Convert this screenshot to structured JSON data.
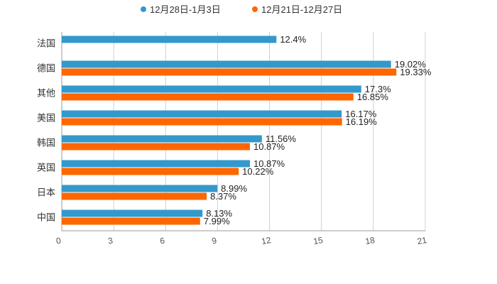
{
  "chart_data": {
    "type": "bar",
    "orientation": "horizontal",
    "categories": [
      "法国",
      "德国",
      "其他",
      "美国",
      "韩国",
      "英国",
      "日本",
      "中国"
    ],
    "series": [
      {
        "name": "12月28日-1月3日",
        "color": "#3399cc",
        "values": [
          12.4,
          19.02,
          17.3,
          16.17,
          11.56,
          10.87,
          8.99,
          8.13
        ],
        "labels": [
          "12.4%",
          "19.02%",
          "17.3%",
          "16.17%",
          "11.56%",
          "10.87%",
          "8.99%",
          "8.13%"
        ]
      },
      {
        "name": "12月21日-12月27日",
        "color": "#ff6600",
        "values": [
          null,
          19.33,
          16.85,
          16.19,
          10.87,
          10.22,
          8.37,
          7.99
        ],
        "labels": [
          null,
          "19.33%",
          "16.85%",
          "16.19%",
          "10.87%",
          "10.22%",
          "8.37%",
          "7.99%"
        ]
      }
    ],
    "x_ticks": [
      0,
      3,
      6,
      9,
      12,
      15,
      18,
      21
    ],
    "xlim": [
      0,
      21
    ],
    "grid": true,
    "legend_position": "top-center",
    "title": "",
    "xlabel": "",
    "ylabel": ""
  }
}
